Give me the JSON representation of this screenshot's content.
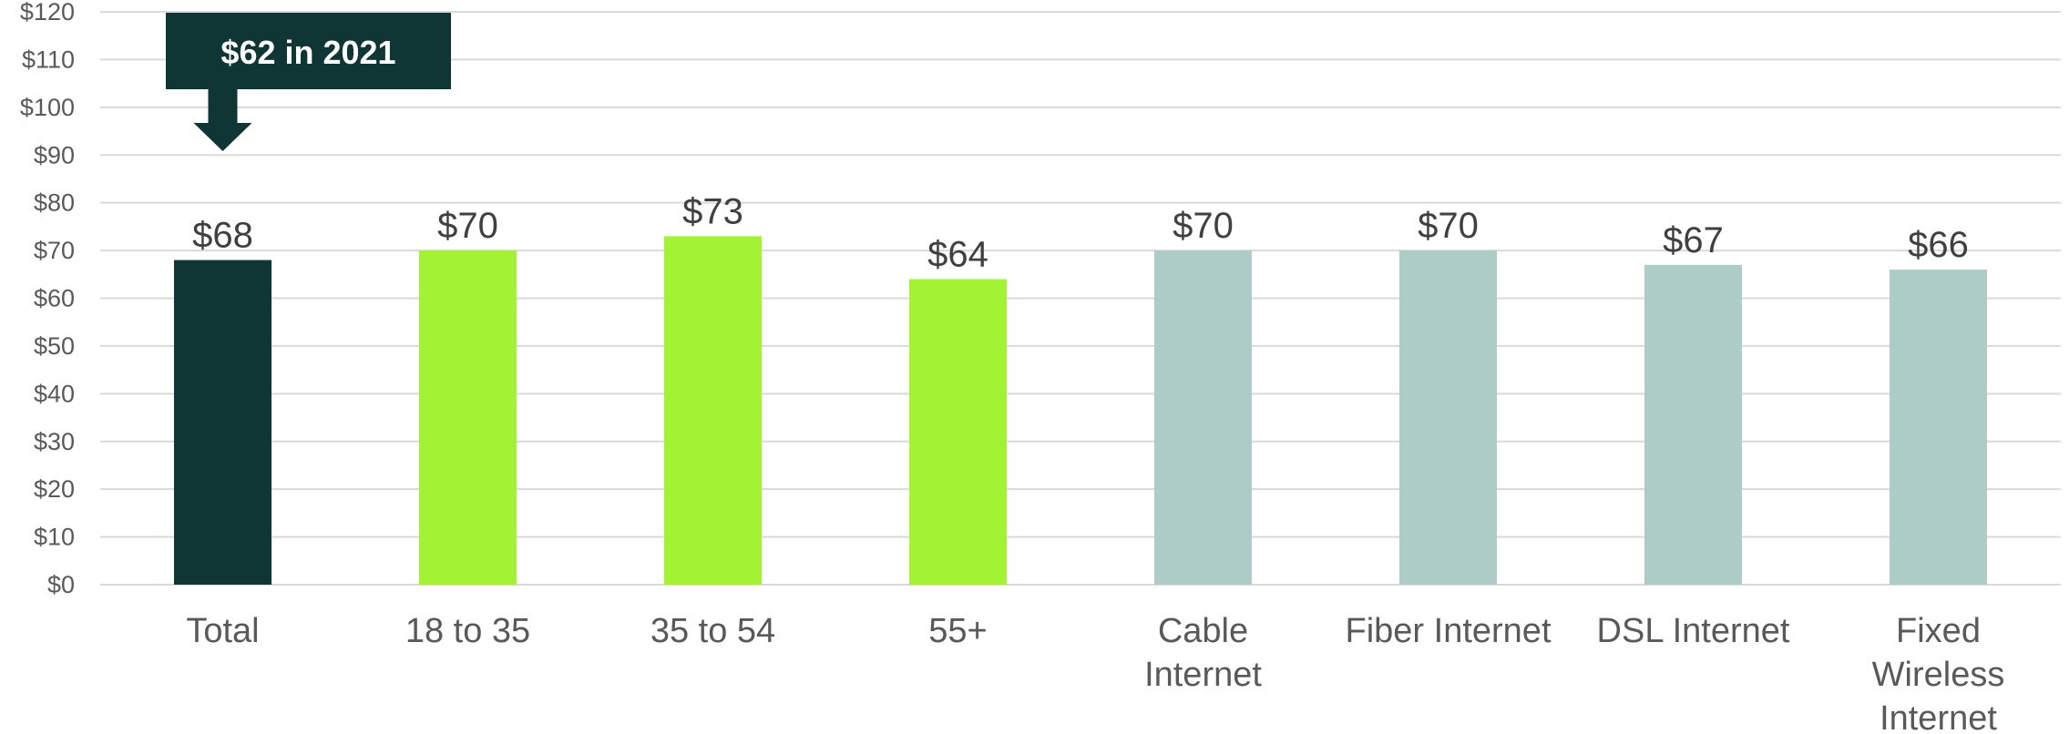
{
  "chart_data": {
    "type": "bar",
    "categories": [
      "Total",
      "18 to 35",
      "35 to 54",
      "55+",
      "Cable Internet",
      "Fiber Internet",
      "DSL Internet",
      "Fixed Wireless Internet"
    ],
    "category_lines": [
      [
        "Total"
      ],
      [
        "18 to 35"
      ],
      [
        "35 to 54"
      ],
      [
        "55+"
      ],
      [
        "Cable",
        "Internet"
      ],
      [
        "Fiber Internet"
      ],
      [
        "DSL Internet"
      ],
      [
        "Fixed",
        "Wireless",
        "Internet"
      ]
    ],
    "values": [
      68,
      70,
      73,
      64,
      70,
      70,
      67,
      66
    ],
    "data_labels": [
      "$68",
      "$70",
      "$73",
      "$64",
      "$70",
      "$70",
      "$67",
      "$66"
    ],
    "bar_colors": [
      "#0f3634",
      "#a3f234",
      "#a3f234",
      "#a3f234",
      "#adccc7",
      "#adccc7",
      "#adccc7",
      "#adccc7"
    ],
    "ylim": [
      0,
      120
    ],
    "yticks": [
      0,
      10,
      20,
      30,
      40,
      50,
      60,
      70,
      80,
      90,
      100,
      110,
      120
    ],
    "ytick_labels": [
      "$0",
      "$10",
      "$20",
      "$30",
      "$40",
      "$50",
      "$60",
      "$70",
      "$80",
      "$90",
      "$100",
      "$110",
      "$120"
    ],
    "grid": true,
    "title": "",
    "xlabel": "",
    "ylabel": "",
    "annotation": {
      "text": "$62 in 2021",
      "category": "Total",
      "color": "#0f3634"
    }
  },
  "colors": {
    "grid": "#d9d9d9",
    "axis_text": "#595959",
    "label_text": "#404040"
  }
}
